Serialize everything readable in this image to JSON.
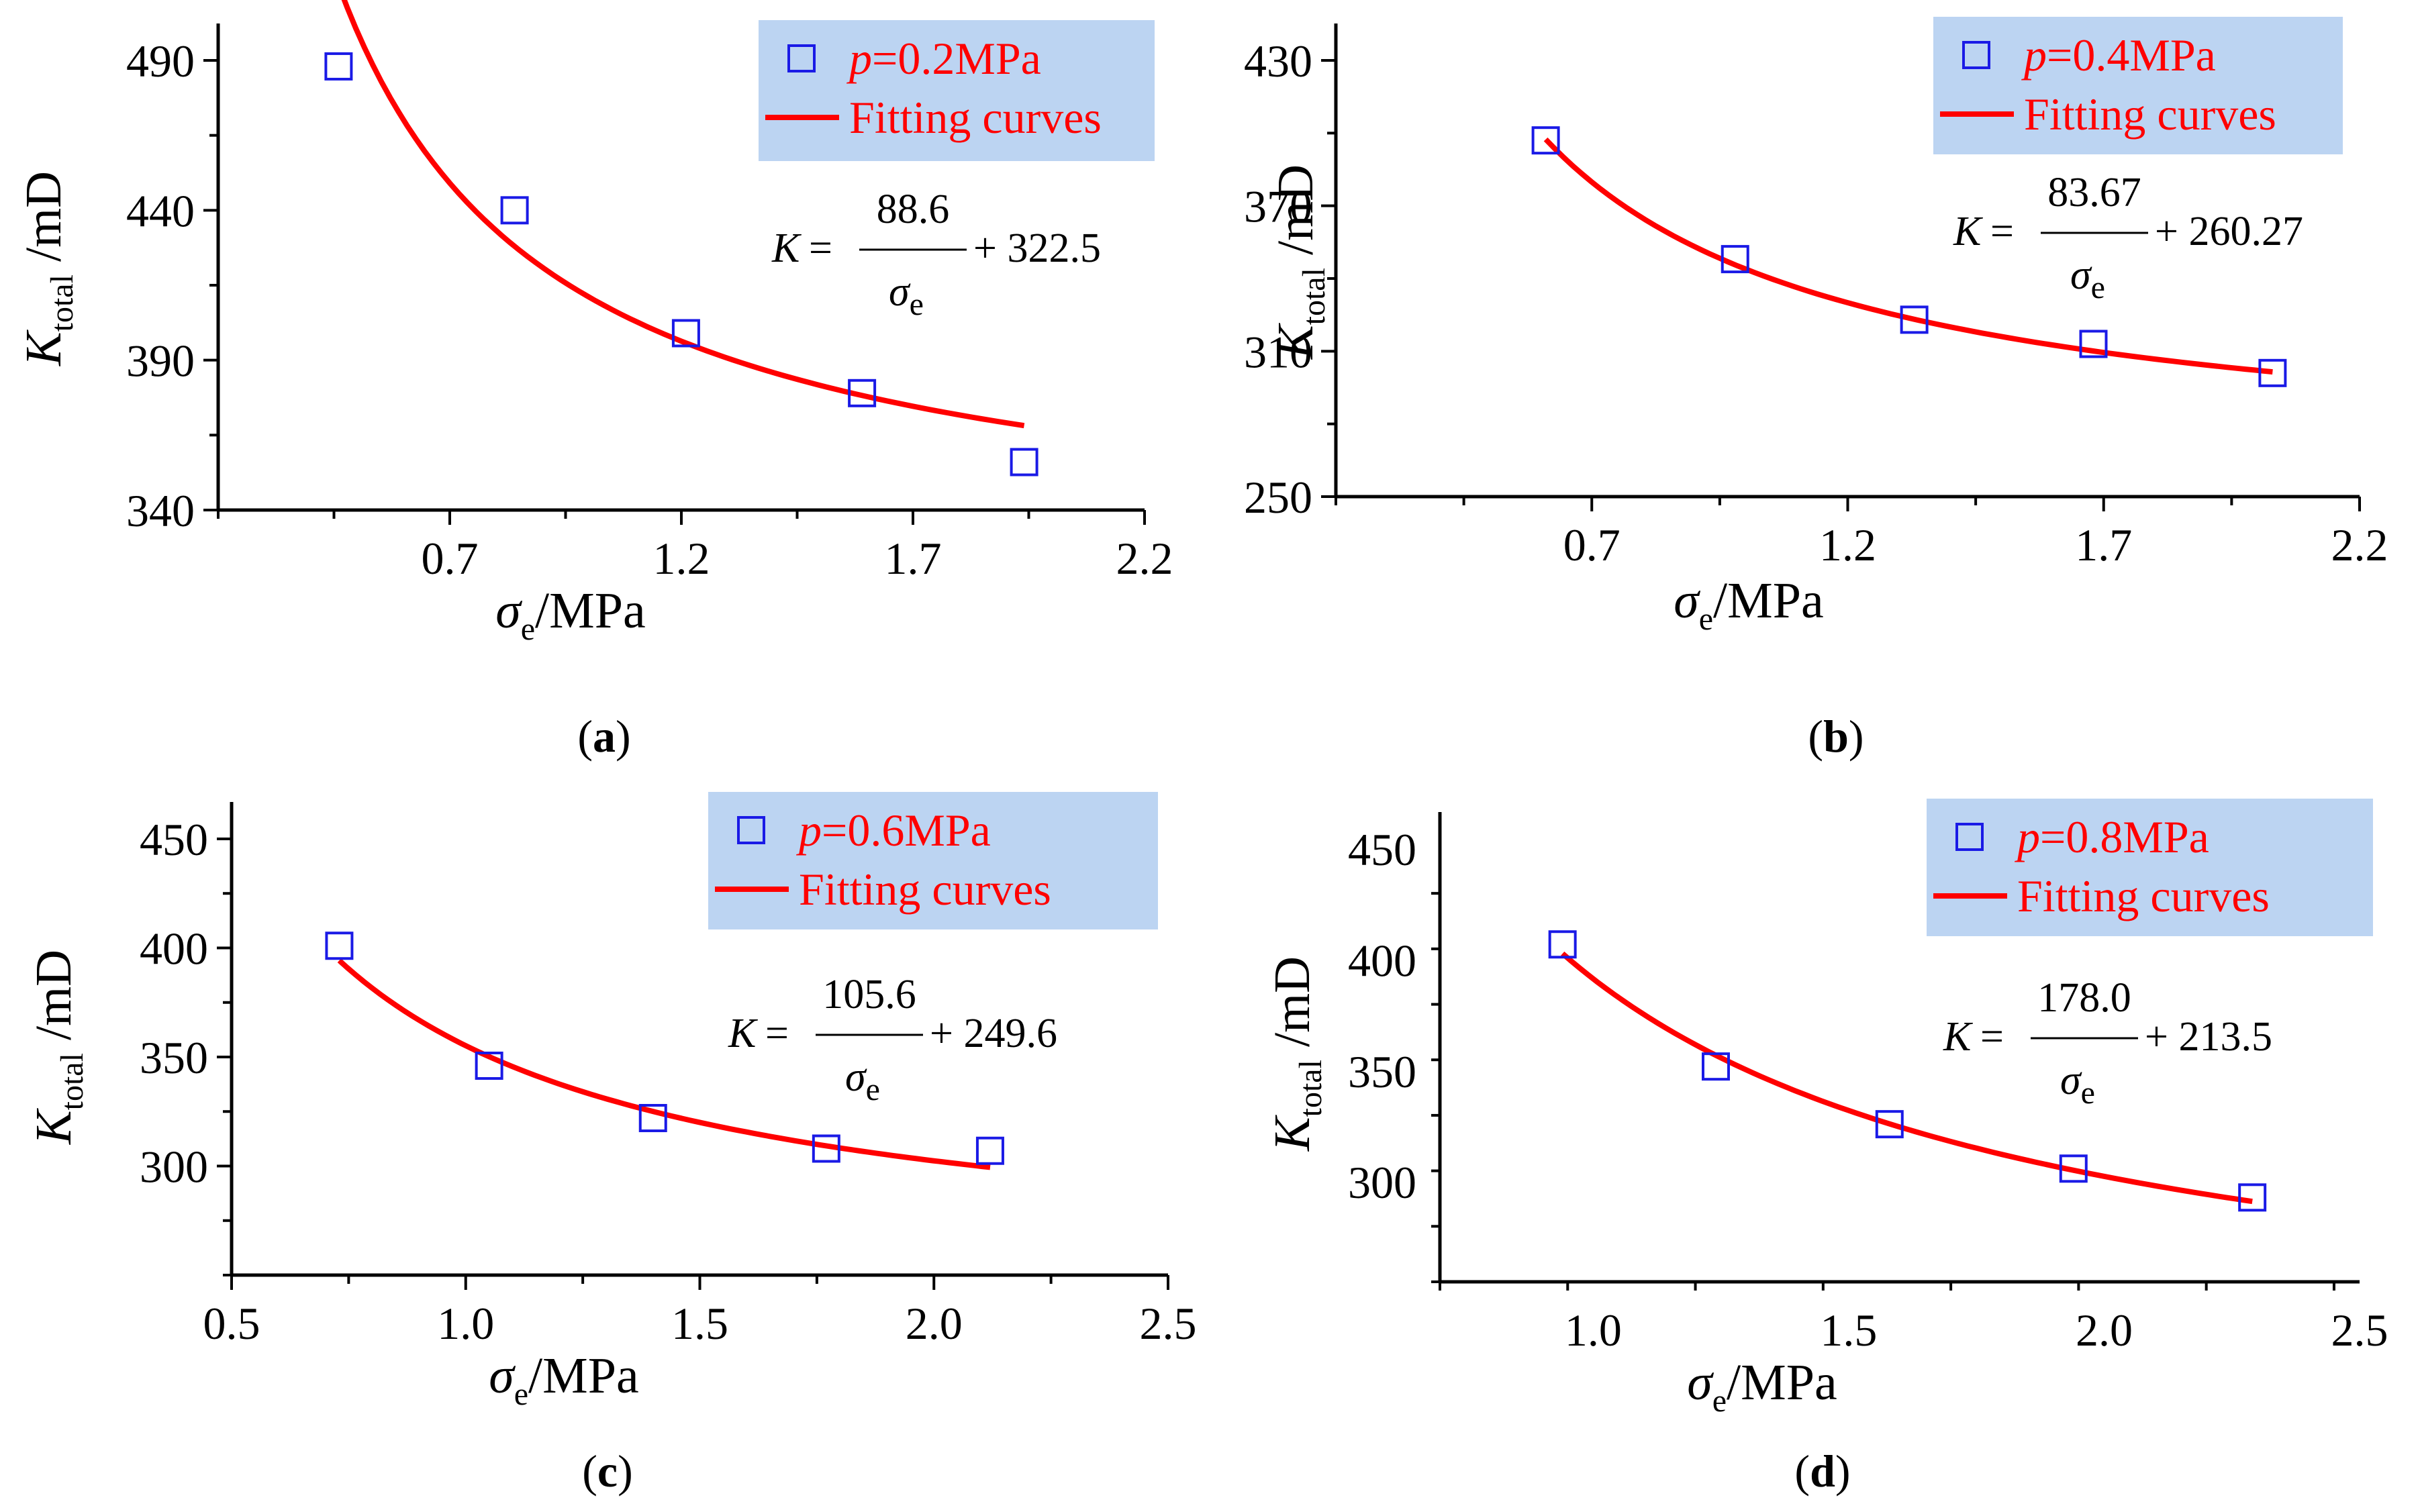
{
  "chart_data": [
    {
      "type": "scatter",
      "panel_label": "a",
      "xlabel": {
        "symbol": "σ",
        "sub": "e",
        "unit": "/MPa"
      },
      "ylabel": {
        "symbol": "K",
        "sub": "total",
        "unit": "/mD"
      },
      "xlim": [
        0.2,
        2.2
      ],
      "ylim": [
        340,
        490
      ],
      "xticks": [
        "0.7",
        "1.2",
        "1.7",
        "2.2"
      ],
      "yticks": [
        "340",
        "390",
        "440",
        "490"
      ],
      "series": [
        {
          "name": "p=0.2MPa",
          "marker": "square",
          "color": "#1a1ae6",
          "x": [
            0.46,
            0.84,
            1.21,
            1.59,
            1.94
          ],
          "y": [
            488,
            440,
            399,
            379,
            356
          ]
        },
        {
          "name": "Fitting curves",
          "kind": "line",
          "color": "#ff0000",
          "a": 88.6,
          "b": 322.5,
          "x_range": [
            0.46,
            1.94
          ]
        }
      ],
      "legend": {
        "position": "top-right",
        "background": "#bcd4f2",
        "entries": [
          {
            "prefix": "p",
            "text": "=0.2MPa"
          },
          {
            "text": "Fitting curves"
          }
        ]
      },
      "equation": {
        "lhs": "K",
        "num": "88.6",
        "den": "σ",
        "den_sub": "e",
        "rhs": "+ 322.5"
      }
    },
    {
      "type": "scatter",
      "panel_label": "b",
      "xlabel": {
        "symbol": "σ",
        "sub": "e",
        "unit": "/MPa"
      },
      "ylabel": {
        "symbol": "K",
        "sub": "total",
        "unit": "/mD"
      },
      "xlim": [
        0.2,
        2.2
      ],
      "ylim": [
        250,
        430
      ],
      "xticks": [
        "0.7",
        "1.2",
        "1.7",
        "2.2"
      ],
      "yticks": [
        "250",
        "310",
        "370",
        "430"
      ],
      "series": [
        {
          "name": "p=0.4MPa",
          "marker": "square",
          "color": "#1a1ae6",
          "x": [
            0.61,
            0.98,
            1.33,
            1.68,
            2.03
          ],
          "y": [
            397,
            348,
            323,
            313,
            301
          ]
        },
        {
          "name": "Fitting curves",
          "kind": "line",
          "color": "#ff0000",
          "a": 83.67,
          "b": 260.27,
          "x_range": [
            0.61,
            2.03
          ]
        }
      ],
      "legend": {
        "position": "top-right",
        "background": "#bcd4f2",
        "entries": [
          {
            "prefix": "p",
            "text": "=0.4MPa"
          },
          {
            "text": "Fitting curves"
          }
        ]
      },
      "equation": {
        "lhs": "K",
        "num": "83.67",
        "den": "σ",
        "den_sub": "e",
        "rhs": "+ 260.27"
      }
    },
    {
      "type": "scatter",
      "panel_label": "c",
      "xlabel": {
        "symbol": "σ",
        "sub": "e",
        "unit": "/MPa"
      },
      "ylabel": {
        "symbol": "K",
        "sub": "total",
        "unit": "/mD"
      },
      "xlim": [
        0.5,
        2.5
      ],
      "ylim": [
        250,
        450
      ],
      "xticks": [
        "0.5",
        "1.0",
        "1.5",
        "2.0",
        "2.5"
      ],
      "yticks": [
        "300",
        "350",
        "400",
        "450"
      ],
      "series": [
        {
          "name": "p=0.6MPa",
          "marker": "square",
          "color": "#1a1ae6",
          "x": [
            0.73,
            1.05,
            1.4,
            1.77,
            2.12
          ],
          "y": [
            401,
            346,
            322,
            308,
            307
          ]
        },
        {
          "name": "Fitting curves",
          "kind": "line",
          "color": "#ff0000",
          "a": 105.6,
          "b": 249.6,
          "x_range": [
            0.73,
            2.12
          ]
        }
      ],
      "legend": {
        "position": "top-right",
        "background": "#bcd4f2",
        "entries": [
          {
            "prefix": "p",
            "text": "=0.6MPa"
          },
          {
            "text": "Fitting curves"
          }
        ]
      },
      "equation": {
        "lhs": "K",
        "num": "105.6",
        "den": "σ",
        "den_sub": "e",
        "rhs": "+ 249.6"
      }
    },
    {
      "type": "scatter",
      "panel_label": "d",
      "xlabel": {
        "symbol": "σ",
        "sub": "e",
        "unit": "/MPa"
      },
      "ylabel": {
        "symbol": "K",
        "sub": "total",
        "unit": "/mD"
      },
      "xlim": [
        0.7,
        2.5
      ],
      "ylim": [
        255,
        450
      ],
      "xticks": [
        "1.0",
        "1.5",
        "2.0",
        "2.5"
      ],
      "yticks": [
        "300",
        "350",
        "400",
        "450"
      ],
      "series": [
        {
          "name": "p=0.8MPa",
          "marker": "square",
          "color": "#1a1ae6",
          "x": [
            0.94,
            1.24,
            1.58,
            1.94,
            2.29
          ],
          "y": [
            407,
            352,
            326,
            306,
            293
          ]
        },
        {
          "name": "Fitting curves",
          "kind": "line",
          "color": "#ff0000",
          "a": 178.0,
          "b": 213.5,
          "x_range": [
            0.94,
            2.29
          ]
        }
      ],
      "legend": {
        "position": "top-right",
        "background": "#bcd4f2",
        "entries": [
          {
            "prefix": "p",
            "text": "=0.8MPa"
          },
          {
            "text": "Fitting curves"
          }
        ]
      },
      "equation": {
        "lhs": "K",
        "num": "178.0",
        "den": "σ",
        "den_sub": "e",
        "rhs": "+ 213.5"
      }
    }
  ]
}
